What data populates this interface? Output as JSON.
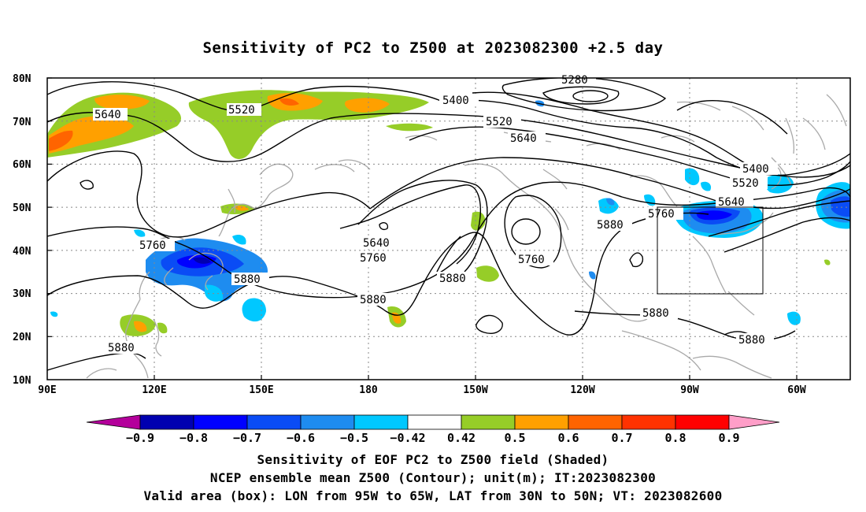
{
  "title": "Sensitivity of PC2 to Z500 at 2023082300 +2.5 day",
  "lat_labels": [
    "80N",
    "70N",
    "60N",
    "50N",
    "40N",
    "30N",
    "20N",
    "10N"
  ],
  "lon_labels": [
    "90E",
    "120E",
    "150E",
    "180",
    "150W",
    "120W",
    "90W",
    "60W"
  ],
  "contour_labels": [
    "5280",
    "5400",
    "5520",
    "5640",
    "5760",
    "5880"
  ],
  "colorbar": {
    "labels": [
      "-0.9",
      "-0.8",
      "-0.7",
      "-0.6",
      "-0.5",
      "-0.42",
      "0.42",
      "0.5",
      "0.6",
      "0.7",
      "0.8",
      "0.9"
    ],
    "colors": [
      "#b4009b",
      "#0000b0",
      "#0000ff",
      "#0a4cf5",
      "#1e8cf0",
      "#00c8ff",
      "#ffffff",
      "#96cd28",
      "#ffa000",
      "#ff6400",
      "#ff3200",
      "#ff0000",
      "#ff9ec8"
    ]
  },
  "valid_box": {
    "lon_range": [
      "95W",
      "65W"
    ],
    "lat_range": [
      "30N",
      "50N"
    ]
  },
  "captions": [
    "Sensitivity of EOF PC2 to Z500 field (Shaded)",
    "NCEP ensemble mean Z500 (Contour); unit(m); IT:2023082300",
    "Valid area (box): LON from 95W to 65W, LAT from 30N to 50N; VT: 2023082600"
  ]
}
